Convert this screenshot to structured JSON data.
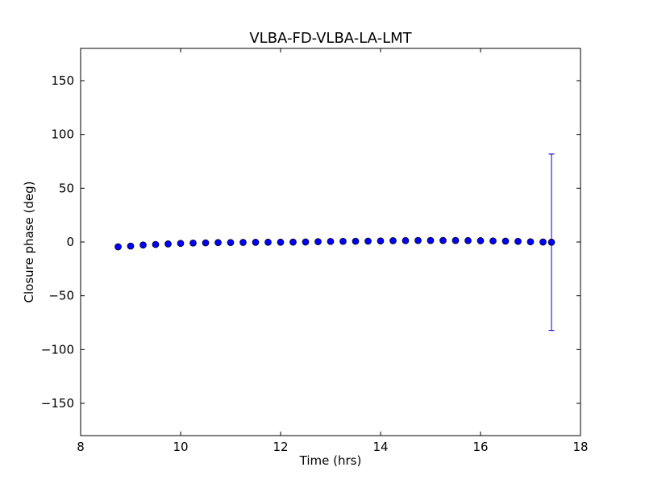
{
  "chart_data": {
    "type": "scatter",
    "title": "VLBA-FD-VLBA-LA-LMT",
    "xlabel": "Time (hrs)",
    "ylabel": "Closure phase (deg)",
    "xlim": [
      8,
      18
    ],
    "ylim": [
      -180,
      180
    ],
    "xticks": [
      8,
      10,
      12,
      14,
      16,
      18
    ],
    "xtick_labels": [
      "8",
      "10",
      "12",
      "14",
      "16",
      "18"
    ],
    "yticks": [
      150,
      100,
      50,
      0,
      -50,
      -100,
      -150
    ],
    "ytick_labels": [
      "150",
      "100",
      "50",
      "0",
      "−50",
      "−100",
      "−150"
    ],
    "grid": false,
    "marker_color": "#0000ff",
    "errorbar_color": "#0000cc",
    "x": [
      8.75,
      9.0,
      9.25,
      9.5,
      9.75,
      10.0,
      10.25,
      10.5,
      10.75,
      11.0,
      11.25,
      11.5,
      11.75,
      12.0,
      12.25,
      12.5,
      12.75,
      13.0,
      13.25,
      13.5,
      13.75,
      14.0,
      14.25,
      14.5,
      14.75,
      15.0,
      15.25,
      15.5,
      15.75,
      16.0,
      16.25,
      16.5,
      16.75,
      17.0,
      17.25,
      17.42
    ],
    "y": [
      -4.5,
      -3.8,
      -2.8,
      -2.3,
      -1.8,
      -1.3,
      -1.0,
      -0.8,
      -0.5,
      -0.5,
      -0.4,
      -0.3,
      -0.2,
      -0.2,
      -0.1,
      0.0,
      0.3,
      0.5,
      0.6,
      0.7,
      0.8,
      1.0,
      1.2,
      1.3,
      1.4,
      1.4,
      1.4,
      1.4,
      1.3,
      1.2,
      1.0,
      0.8,
      0.6,
      0.2,
      0.0,
      -0.2
    ],
    "yerr": [
      0.5,
      0.5,
      0.5,
      0.5,
      0.5,
      0.5,
      0.5,
      0.5,
      0.5,
      0.5,
      0.5,
      0.5,
      0.5,
      0.5,
      0.5,
      0.5,
      0.5,
      0.5,
      0.5,
      0.5,
      0.5,
      0.5,
      0.5,
      0.5,
      0.5,
      0.5,
      0.5,
      0.5,
      0.5,
      0.5,
      0.5,
      0.5,
      0.5,
      0.5,
      0.5,
      82.0
    ]
  }
}
